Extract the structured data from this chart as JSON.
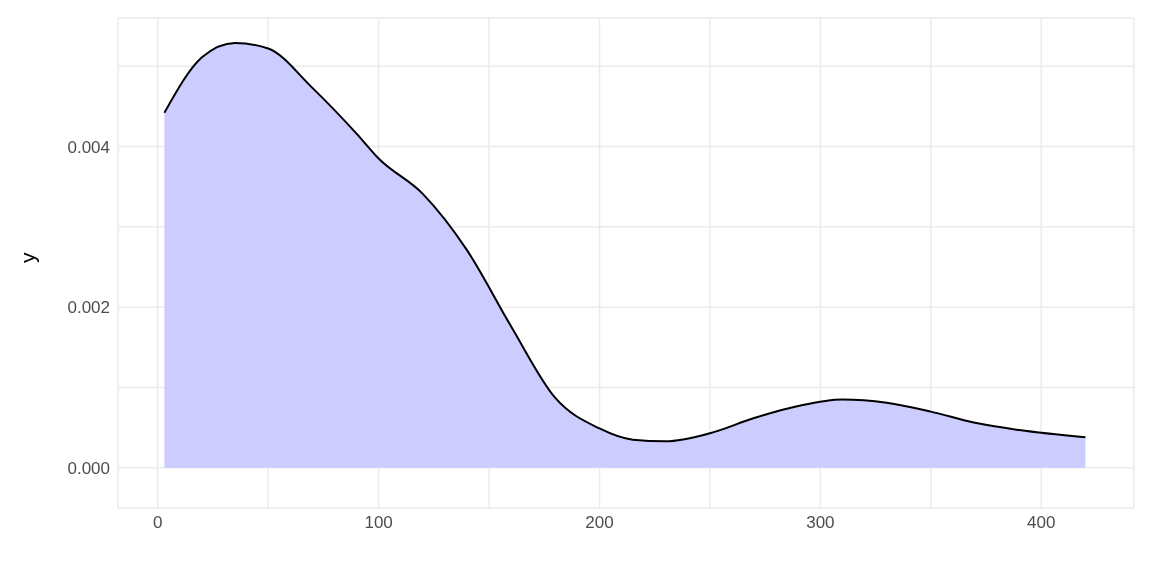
{
  "chart_data": {
    "type": "area",
    "ylabel": "y",
    "x": [
      3,
      20,
      35,
      50,
      70,
      90,
      100,
      120,
      140,
      160,
      180,
      200,
      215,
      230,
      250,
      270,
      290,
      310,
      330,
      350,
      370,
      390,
      420
    ],
    "series": [
      {
        "color": "#ccccff",
        "values": [
          0.00442,
          0.00511,
          0.00529,
          0.00522,
          0.00473,
          0.00416,
          0.00385,
          0.00341,
          0.00271,
          0.00176,
          0.00087,
          0.00049,
          0.00035,
          0.00033,
          0.00043,
          0.00062,
          0.00077,
          0.00085,
          0.00081,
          0.0007,
          0.00056,
          0.00047,
          0.00038
        ]
      }
    ],
    "xlim": [
      -18,
      442
    ],
    "ylim": [
      -0.0005,
      0.0056
    ],
    "xticks": [
      0,
      {
        "value": 50,
        "label": null
      },
      100,
      {
        "value": 150,
        "label": null
      },
      200,
      {
        "value": 250,
        "label": null
      },
      300,
      {
        "value": 350,
        "label": null
      },
      400
    ],
    "yticks": [
      {
        "value": 0,
        "label": "0.000"
      },
      {
        "value": 0.001,
        "label": null
      },
      {
        "value": 0.002,
        "label": "0.002"
      },
      {
        "value": 0.003,
        "label": null
      },
      {
        "value": 0.004,
        "label": "0.004"
      },
      {
        "value": 0.005,
        "label": null
      }
    ],
    "grid": true
  }
}
